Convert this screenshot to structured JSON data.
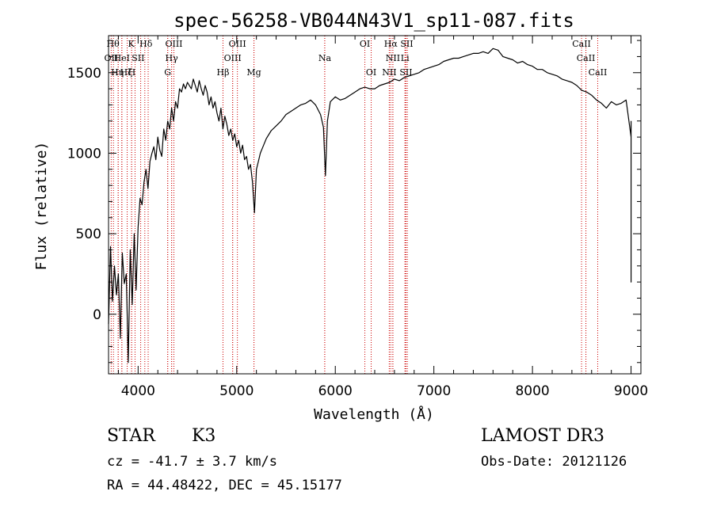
{
  "chart_data": {
    "type": "line",
    "title": "spec-56258-VB044N43V1_sp11-087.fits",
    "xlabel": "Wavelength (Å)",
    "ylabel": "Flux (relative)",
    "xlim": [
      3700,
      9100
    ],
    "ylim": [
      -370,
      1730
    ],
    "x_ticks": [
      4000,
      5000,
      6000,
      7000,
      8000,
      9000
    ],
    "y_ticks": [
      0,
      500,
      1000,
      1500
    ],
    "grid": false,
    "line_color": "#000000",
    "marker_color": "#cc0000",
    "series": [
      {
        "x": [
          3700,
          3720,
          3740,
          3760,
          3780,
          3800,
          3820,
          3840,
          3860,
          3880,
          3900,
          3920,
          3940,
          3960,
          3980,
          4000,
          4020,
          4040,
          4060,
          4080,
          4100,
          4120,
          4140,
          4160,
          4180,
          4200,
          4220,
          4240,
          4260,
          4280,
          4300,
          4320,
          4340,
          4360,
          4380,
          4400,
          4420,
          4440,
          4460,
          4480,
          4500,
          4520,
          4540,
          4560,
          4580,
          4600,
          4620,
          4640,
          4660,
          4680,
          4700,
          4720,
          4740,
          4760,
          4780,
          4800,
          4820,
          4840,
          4860,
          4880,
          4900,
          4920,
          4940,
          4960,
          4980,
          5000,
          5020,
          5040,
          5060,
          5080,
          5100,
          5120,
          5140,
          5160,
          5180,
          5200,
          5220,
          5240,
          5260,
          5280,
          5300,
          5350,
          5400,
          5450,
          5500,
          5550,
          5600,
          5650,
          5700,
          5750,
          5800,
          5850,
          5880,
          5900,
          5920,
          5950,
          6000,
          6050,
          6100,
          6150,
          6200,
          6250,
          6300,
          6350,
          6400,
          6450,
          6500,
          6550,
          6600,
          6650,
          6700,
          6750,
          6800,
          6850,
          6900,
          6950,
          7000,
          7050,
          7100,
          7150,
          7200,
          7250,
          7300,
          7350,
          7400,
          7450,
          7500,
          7550,
          7600,
          7650,
          7700,
          7750,
          7800,
          7850,
          7900,
          7950,
          8000,
          8050,
          8100,
          8150,
          8200,
          8250,
          8300,
          8350,
          8400,
          8450,
          8500,
          8550,
          8600,
          8650,
          8700,
          8750,
          8800,
          8850,
          8900,
          8950,
          9000,
          9000,
          9000
        ],
        "y": [
          -60,
          420,
          80,
          300,
          120,
          250,
          -150,
          380,
          190,
          250,
          -300,
          400,
          60,
          500,
          150,
          540,
          720,
          680,
          820,
          900,
          780,
          950,
          1000,
          1040,
          960,
          1100,
          1020,
          980,
          1150,
          1080,
          1200,
          1150,
          1280,
          1200,
          1320,
          1280,
          1400,
          1380,
          1430,
          1400,
          1440,
          1420,
          1400,
          1460,
          1420,
          1380,
          1450,
          1400,
          1360,
          1420,
          1380,
          1300,
          1350,
          1280,
          1320,
          1250,
          1200,
          1280,
          1150,
          1230,
          1180,
          1110,
          1150,
          1080,
          1120,
          1040,
          1080,
          1000,
          1050,
          960,
          980,
          900,
          930,
          820,
          630,
          900,
          950,
          1000,
          1030,
          1060,
          1090,
          1140,
          1170,
          1200,
          1240,
          1260,
          1280,
          1300,
          1310,
          1330,
          1300,
          1240,
          1160,
          860,
          1200,
          1320,
          1350,
          1330,
          1340,
          1360,
          1380,
          1400,
          1410,
          1400,
          1400,
          1420,
          1430,
          1440,
          1460,
          1450,
          1470,
          1480,
          1490,
          1500,
          1520,
          1530,
          1540,
          1550,
          1570,
          1580,
          1590,
          1590,
          1600,
          1610,
          1620,
          1620,
          1630,
          1620,
          1650,
          1640,
          1600,
          1590,
          1580,
          1560,
          1570,
          1550,
          1540,
          1520,
          1520,
          1500,
          1490,
          1480,
          1460,
          1450,
          1440,
          1420,
          1390,
          1380,
          1360,
          1330,
          1310,
          1280,
          1320,
          1300,
          1310,
          1330,
          1100,
          200,
          1200
        ]
      }
    ],
    "line_markers": [
      {
        "wavelength": 3750,
        "row": 0,
        "label": "Hθ",
        "label_x": 3745
      },
      {
        "wavelength": 3798,
        "row": 0,
        "label": "",
        "label_x": 3798
      },
      {
        "wavelength": 3835,
        "row": 0,
        "label": "",
        "label_x": 3835
      },
      {
        "wavelength": 3889,
        "row": 0,
        "label": "",
        "label_x": 3889
      },
      {
        "wavelength": 3934,
        "row": 0,
        "label": "K",
        "label_x": 3930
      },
      {
        "wavelength": 3969,
        "row": 0,
        "label": "",
        "label_x": 3969
      },
      {
        "wavelength": 4026,
        "row": 0,
        "label": "",
        "label_x": 4026
      },
      {
        "wavelength": 4102,
        "row": 0,
        "label": "Hδ",
        "label_x": 4080
      },
      {
        "wavelength": 4300,
        "row": 0,
        "label": "",
        "label_x": 4300
      },
      {
        "wavelength": 4340,
        "row": 0,
        "label": "",
        "label_x": 4340
      },
      {
        "wavelength": 4363,
        "row": 0,
        "label": "OIII",
        "label_x": 4363
      },
      {
        "wavelength": 4861,
        "row": 0,
        "label": "",
        "label_x": 4861
      },
      {
        "wavelength": 4959,
        "row": 0,
        "label": "",
        "label_x": 4959
      },
      {
        "wavelength": 5007,
        "row": 0,
        "label": "OIII",
        "label_x": 5007
      },
      {
        "wavelength": 5175,
        "row": 0,
        "label": "",
        "label_x": 5175
      },
      {
        "wavelength": 5893,
        "row": 0,
        "label": "",
        "label_x": 5893
      },
      {
        "wavelength": 6300,
        "row": 0,
        "label": "OI",
        "label_x": 6300
      },
      {
        "wavelength": 6364,
        "row": 0,
        "label": "",
        "label_x": 6364
      },
      {
        "wavelength": 6548,
        "row": 0,
        "label": "",
        "label_x": 6548
      },
      {
        "wavelength": 6563,
        "row": 0,
        "label": "Hα",
        "label_x": 6563
      },
      {
        "wavelength": 6584,
        "row": 0,
        "label": "",
        "label_x": 6584
      },
      {
        "wavelength": 6707,
        "row": 0,
        "label": "",
        "label_x": 6707
      },
      {
        "wavelength": 6717,
        "row": 0,
        "label": "SII",
        "label_x": 6725
      },
      {
        "wavelength": 6731,
        "row": 0,
        "label": "",
        "label_x": 6731
      },
      {
        "wavelength": 8498,
        "row": 0,
        "label": "CaII",
        "label_x": 8498
      },
      {
        "wavelength": 8542,
        "row": 0,
        "label": "",
        "label_x": 8542
      },
      {
        "wavelength": 8662,
        "row": 0,
        "label": "",
        "label_x": 8662
      },
      {
        "wavelength": 3727,
        "row": 1,
        "label": "OII",
        "label_x": 3727
      },
      {
        "wavelength": 3835,
        "row": 1,
        "label": "HeI",
        "label_x": 3835
      },
      {
        "wavelength": 4068,
        "row": 1,
        "label": "SII",
        "label_x": 4000
      },
      {
        "wavelength": 4340,
        "row": 1,
        "label": "Hγ",
        "label_x": 4340
      },
      {
        "wavelength": 4959,
        "row": 1,
        "label": "OIII",
        "label_x": 4959
      },
      {
        "wavelength": 5893,
        "row": 1,
        "label": "Na",
        "label_x": 5893
      },
      {
        "wavelength": 6584,
        "row": 1,
        "label": "NII",
        "label_x": 6584
      },
      {
        "wavelength": 6707,
        "row": 1,
        "label": "Li",
        "label_x": 6707
      },
      {
        "wavelength": 8542,
        "row": 1,
        "label": "CaII",
        "label_x": 8542
      },
      {
        "wavelength": 3798,
        "row": 2,
        "label": "Hη",
        "label_x": 3790
      },
      {
        "wavelength": 3889,
        "row": 2,
        "label": "Hζ",
        "label_x": 3880
      },
      {
        "wavelength": 3934,
        "row": 2,
        "label": "H",
        "label_x": 3936
      },
      {
        "wavelength": 4300,
        "row": 2,
        "label": "G",
        "label_x": 4300
      },
      {
        "wavelength": 4861,
        "row": 2,
        "label": "Hβ",
        "label_x": 4861
      },
      {
        "wavelength": 5175,
        "row": 2,
        "label": "Mg",
        "label_x": 5175
      },
      {
        "wavelength": 6364,
        "row": 2,
        "label": "OI",
        "label_x": 6364
      },
      {
        "wavelength": 6548,
        "row": 2,
        "label": "NII",
        "label_x": 6548
      },
      {
        "wavelength": 6717,
        "row": 2,
        "label": "SII",
        "label_x": 6717
      },
      {
        "wavelength": 8662,
        "row": 2,
        "label": "CaII",
        "label_x": 8662
      }
    ]
  },
  "info": {
    "class": "STAR",
    "subclass": "K3",
    "survey": "LAMOST DR3",
    "cz": "cz = -41.7 ± 3.7 km/s",
    "obs_date": "Obs-Date: 20121126",
    "radec": "RA =  44.48422, DEC =  45.15177"
  }
}
